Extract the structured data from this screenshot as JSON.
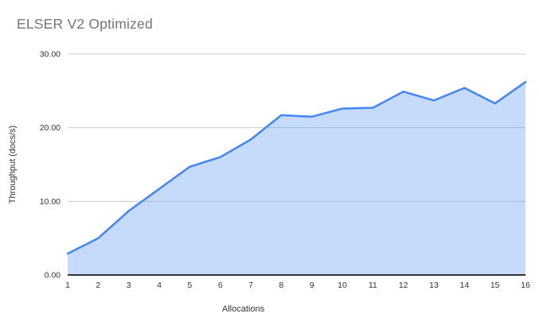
{
  "chart": {
    "title": "ELSER V2 Optimized",
    "xlabel": "Allocations",
    "ylabel": "Throughput (docs/s)"
  },
  "chart_data": {
    "type": "area",
    "title": "ELSER V2 Optimized",
    "xlabel": "Allocations",
    "ylabel": "Throughput (docs/s)",
    "categories": [
      1,
      2,
      3,
      4,
      5,
      6,
      7,
      8,
      9,
      10,
      11,
      12,
      13,
      14,
      15,
      16
    ],
    "values": [
      2.9,
      5.0,
      8.7,
      11.7,
      14.7,
      16.0,
      18.4,
      21.7,
      21.5,
      22.6,
      22.7,
      24.9,
      23.7,
      25.4,
      23.3,
      26.2
    ],
    "ylim": [
      0,
      30
    ],
    "yticks": [
      0,
      10,
      20,
      30
    ],
    "ytick_labels": [
      "0.00",
      "10.00",
      "20.00",
      "30.00"
    ],
    "grid": true,
    "legend_position": "none",
    "colors": {
      "line": "#4285f4",
      "fill": "#4285f4",
      "fill_opacity": "0.3",
      "title_text": "#757575",
      "axis_text": "#333333",
      "gridline": "#cccccc",
      "baseline": "#333333",
      "background": "#ffffff"
    }
  }
}
